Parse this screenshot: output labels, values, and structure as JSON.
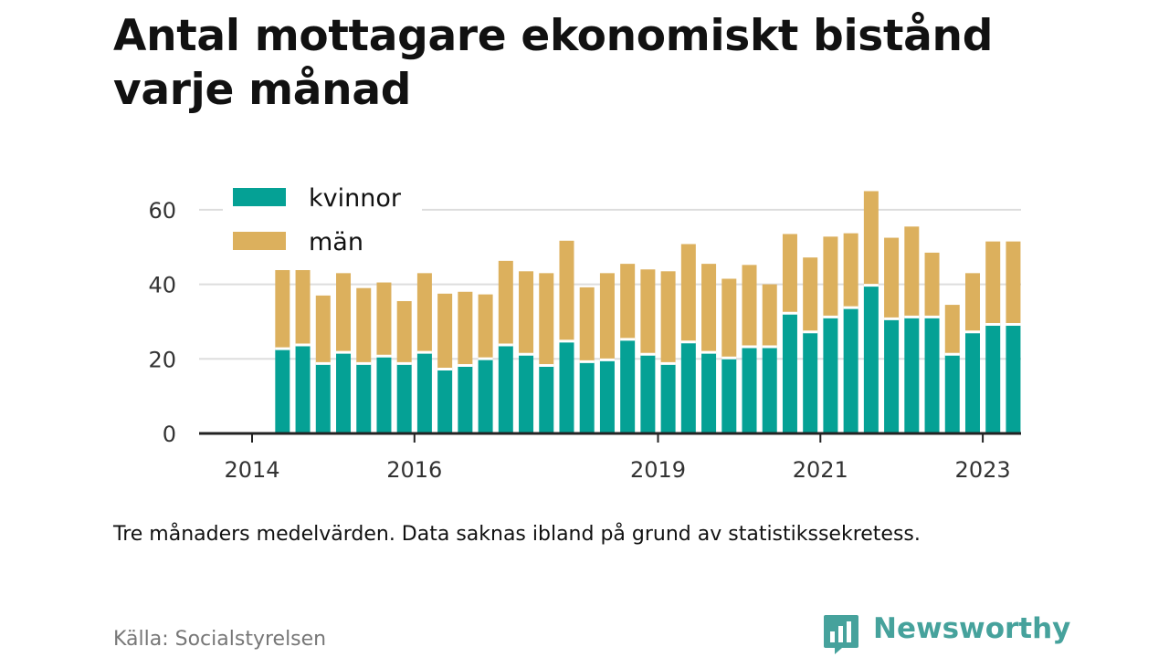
{
  "title": "Antal mottagare ekonomiskt bistånd varje månad",
  "note": "Tre månaders medelvärden. Data saknas ibland på grund av statistikssekretess.",
  "source": "Källa: Socialstyrelsen",
  "brand": {
    "name": "Newsworthy",
    "icon": "newsworthy-logo-icon",
    "color": "#46a29c"
  },
  "colors": {
    "kvinnor": "#05a195",
    "man": "#dcb05d",
    "grid": "#dddddd",
    "axis": "#222222",
    "text": "#333333"
  },
  "chart_data": {
    "type": "bar",
    "stacked": true,
    "legend_position": "top-left",
    "grid": true,
    "ylim": [
      0,
      65
    ],
    "yticks": [
      "0",
      "20",
      "40",
      "60"
    ],
    "xticks": [
      {
        "label": "2014",
        "value": 2014.0
      },
      {
        "label": "2016",
        "value": 2016.0
      },
      {
        "label": "2019",
        "value": 2019.0
      },
      {
        "label": "2021",
        "value": 2021.0
      },
      {
        "label": "2023",
        "value": 2023.0
      }
    ],
    "x": [
      "2014-05",
      "2014-08",
      "2014-11",
      "2015-02",
      "2015-05",
      "2015-08",
      "2015-11",
      "2016-02",
      "2016-05",
      "2016-08",
      "2016-11",
      "2017-02",
      "2017-05",
      "2017-08",
      "2017-11",
      "2018-02",
      "2018-05",
      "2018-08",
      "2018-11",
      "2019-02",
      "2019-05",
      "2019-08",
      "2019-11",
      "2020-02",
      "2020-05",
      "2020-08",
      "2020-11",
      "2021-02",
      "2021-05",
      "2021-08",
      "2021-11",
      "2022-02",
      "2022-05",
      "2022-08",
      "2022-11",
      "2023-02",
      "2023-05"
    ],
    "series": [
      {
        "name": "kvinnor",
        "color": "#05a195",
        "values": [
          22.5,
          23.5,
          18.5,
          21.5,
          18.5,
          20.5,
          18.5,
          21.5,
          17,
          18,
          19.8,
          23.5,
          21,
          18,
          24.5,
          19,
          19.5,
          25,
          21,
          18.5,
          24.3,
          21.5,
          20,
          23,
          23,
          32,
          27,
          31,
          33.5,
          39.5,
          30.5,
          31,
          31,
          21,
          27,
          29,
          29
        ]
      },
      {
        "name": "män",
        "color": "#dcb05d",
        "values": [
          22,
          21,
          18.5,
          21.5,
          20.5,
          20,
          17,
          21.5,
          20.5,
          20,
          17.5,
          22.8,
          22.5,
          25,
          27.2,
          20.2,
          23.5,
          20.5,
          23,
          25,
          26.5,
          24,
          21.5,
          22.2,
          17,
          21.5,
          20.2,
          21.8,
          20.2,
          25.5,
          22,
          24.5,
          17.5,
          13.5,
          16,
          22.5,
          22.5
        ]
      }
    ]
  }
}
